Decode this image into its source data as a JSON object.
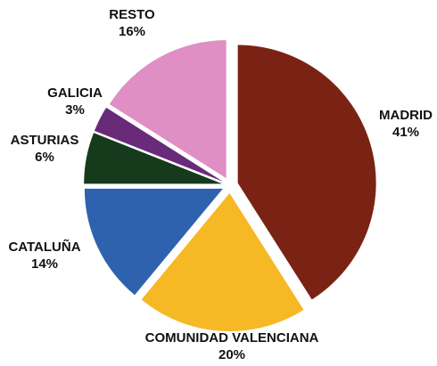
{
  "chart_data": {
    "type": "pie",
    "categories": [
      "MADRID",
      "COMUNIDAD VALENCIANA",
      "CATALUÑA",
      "ASTURIAS",
      "GALICIA",
      "RESTO"
    ],
    "values": [
      41,
      20,
      14,
      6,
      3,
      16
    ],
    "value_labels": [
      "41%",
      "20%",
      "14%",
      "6%",
      "3%",
      "16%"
    ],
    "colors": [
      "#7a2314",
      "#f7b825",
      "#2f62ae",
      "#163a1c",
      "#6a2a7a",
      "#df8fc4"
    ]
  }
}
